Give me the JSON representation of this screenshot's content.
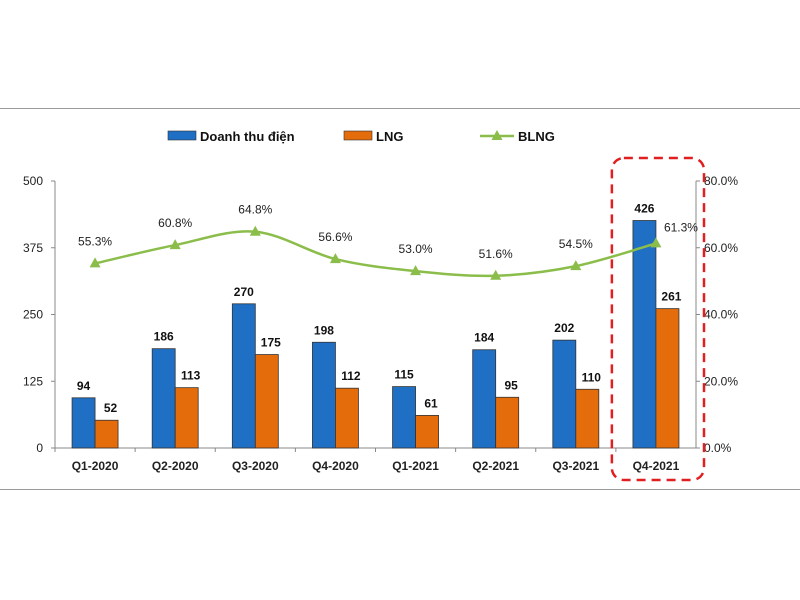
{
  "chart_data": {
    "type": "bar",
    "categories": [
      "Q1-2020",
      "Q2-2020",
      "Q3-2020",
      "Q4-2020",
      "Q1-2021",
      "Q2-2021",
      "Q3-2021",
      "Q4-2021"
    ],
    "series": [
      {
        "name": "Doanh thu điện",
        "type": "bar",
        "axis": "left",
        "color": "#1f6fc5",
        "values": [
          94,
          186,
          270,
          198,
          115,
          184,
          202,
          426
        ]
      },
      {
        "name": "LNG",
        "type": "bar",
        "axis": "left",
        "color": "#e46c0a",
        "values": [
          52,
          113,
          175,
          112,
          61,
          95,
          110,
          261
        ]
      },
      {
        "name": "BLNG",
        "type": "line",
        "axis": "right",
        "color": "#8bbd4a",
        "values": [
          55.3,
          60.8,
          64.8,
          56.6,
          53.0,
          51.6,
          54.5,
          61.3
        ],
        "labels": [
          "55.3%",
          "60.8%",
          "64.8%",
          "56.6%",
          "53.0%",
          "51.6%",
          "54.5%",
          "61.3%"
        ]
      }
    ],
    "y_left": {
      "lim": [
        0,
        500
      ],
      "ticks": [
        "0",
        "125",
        "250",
        "375",
        "500"
      ]
    },
    "y_right": {
      "lim": [
        0,
        80
      ],
      "ticks": [
        "0.0%",
        "20.0%",
        "40.0%",
        "60.0%",
        "80.0%"
      ]
    },
    "legend_position": "top",
    "highlight": {
      "category": "Q4-2021",
      "style": "red dashed rounded box"
    },
    "grid": false
  }
}
